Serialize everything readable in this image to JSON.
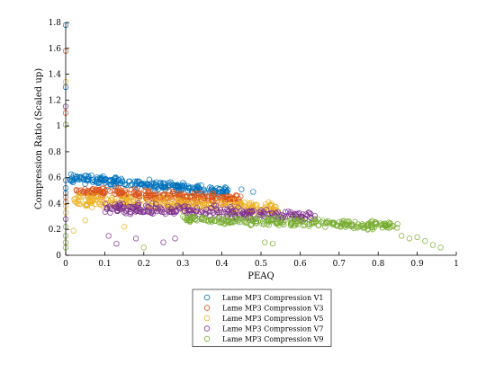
{
  "chart_data": {
    "type": "scatter",
    "xlabel": "PEAQ",
    "ylabel": "Compression Ratio (Scaled up)",
    "xlim": [
      0,
      1
    ],
    "ylim": [
      0,
      1.8
    ],
    "x_ticks": [
      "0",
      "0.1",
      "0.2",
      "0.3",
      "0.4",
      "0.5",
      "0.6",
      "0.7",
      "0.8",
      "0.9",
      "1"
    ],
    "y_ticks": [
      "0",
      "0.2",
      "0.4",
      "0.6",
      "0.8",
      "1",
      "1.2",
      "1.4",
      "1.6",
      "1.8"
    ],
    "grid": false,
    "marker": "open-circle",
    "legend_position": "bottom-outside",
    "series": [
      {
        "name": "Lame MP3 Compression V1",
        "color": "#0072BD",
        "cluster": {
          "x_range": [
            0.01,
            0.42
          ],
          "y_start": 0.6,
          "y_end": 0.49,
          "spread": 0.05
        },
        "points": [
          [
            0.0,
            1.78
          ],
          [
            0.0,
            1.3
          ],
          [
            0.0,
            0.58
          ],
          [
            0.0,
            0.52
          ],
          [
            0.0,
            0.48
          ],
          [
            0.45,
            0.51
          ],
          [
            0.48,
            0.49
          ]
        ]
      },
      {
        "name": "Lame MP3 Compression V3",
        "color": "#D95319",
        "cluster": {
          "x_range": [
            0.02,
            0.45
          ],
          "y_start": 0.5,
          "y_end": 0.43,
          "spread": 0.05
        },
        "points": [
          [
            0.0,
            1.58
          ],
          [
            0.0,
            1.1
          ],
          [
            0.0,
            0.45
          ],
          [
            0.0,
            0.41
          ]
        ]
      },
      {
        "name": "Lame MP3 Compression V5",
        "color": "#EDB120",
        "cluster": {
          "x_range": [
            0.02,
            0.55
          ],
          "y_start": 0.42,
          "y_end": 0.36,
          "spread": 0.07
        },
        "points": [
          [
            0.0,
            1.34
          ],
          [
            0.0,
            0.38
          ],
          [
            0.0,
            0.33
          ],
          [
            0.02,
            0.19
          ],
          [
            0.05,
            0.27
          ],
          [
            0.15,
            0.22
          ]
        ]
      },
      {
        "name": "Lame MP3 Compression V7",
        "color": "#7E2F8E",
        "cluster": {
          "x_range": [
            0.1,
            0.64
          ],
          "y_start": 0.37,
          "y_end": 0.3,
          "spread": 0.06
        },
        "points": [
          [
            0.0,
            1.15
          ],
          [
            0.0,
            0.28
          ],
          [
            0.11,
            0.15
          ],
          [
            0.13,
            0.09
          ],
          [
            0.18,
            0.13
          ],
          [
            0.25,
            0.1
          ],
          [
            0.28,
            0.13
          ]
        ]
      },
      {
        "name": "Lame MP3 Compression V9",
        "color": "#77AC30",
        "cluster": {
          "x_range": [
            0.3,
            0.85
          ],
          "y_start": 0.28,
          "y_end": 0.23,
          "spread": 0.05
        },
        "points": [
          [
            0.0,
            1.01
          ],
          [
            0.0,
            0.22
          ],
          [
            0.0,
            0.15
          ],
          [
            0.0,
            0.1
          ],
          [
            0.0,
            0.06
          ],
          [
            0.2,
            0.06
          ],
          [
            0.51,
            0.1
          ],
          [
            0.53,
            0.09
          ],
          [
            0.86,
            0.15
          ],
          [
            0.88,
            0.13
          ],
          [
            0.9,
            0.14
          ],
          [
            0.92,
            0.11
          ],
          [
            0.94,
            0.08
          ],
          [
            0.96,
            0.06
          ]
        ]
      }
    ]
  }
}
